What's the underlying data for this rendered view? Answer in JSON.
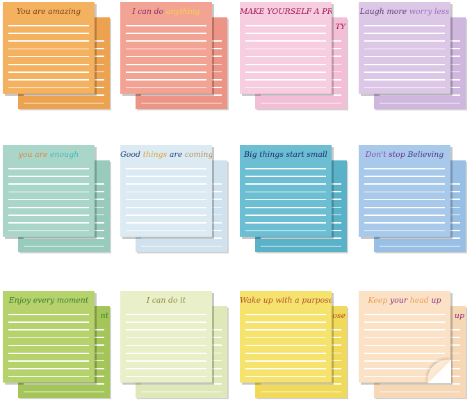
{
  "notes": [
    {
      "front": "#f4b260",
      "back": "#eda24f",
      "title": [
        {
          "t": "You are ",
          "c": "#7a3e12"
        },
        {
          "t": "amazing",
          "c": "#7a3e12"
        }
      ],
      "back_text": ""
    },
    {
      "front": "#f2a394",
      "back": "#ec9486",
      "title": [
        {
          "t": "I can do ",
          "c": "#8a2a6a"
        },
        {
          "t": "anything",
          "c": "#f7d24a"
        }
      ],
      "back_text": ""
    },
    {
      "front": "#f7cde0",
      "back": "#f3bfd6",
      "title": [
        {
          "t": "MAKE YOURSELF A PRIORITY",
          "c": "#a0124f"
        }
      ],
      "back_text": "TY"
    },
    {
      "front": "#dcc8e6",
      "back": "#cfb7dd",
      "title": [
        {
          "t": "Laugh more ",
          "c": "#5a3c76"
        },
        {
          "t": "worry less",
          "c": "#9a72c0"
        }
      ],
      "back_text": ""
    },
    {
      "front": "#a9d6c9",
      "back": "#98cbbc",
      "title": [
        {
          "t": "you are ",
          "c": "#e0803a"
        },
        {
          "t": "enough",
          "c": "#3fb8b8"
        }
      ],
      "back_text": ""
    },
    {
      "front": "#dcebf3",
      "back": "#cfe2ed",
      "title": [
        {
          "t": "Good ",
          "c": "#27407a"
        },
        {
          "t": "things ",
          "c": "#d9a23a"
        },
        {
          "t": "are ",
          "c": "#27407a"
        },
        {
          "t": "coming",
          "c": "#b58a54"
        }
      ],
      "back_text": ""
    },
    {
      "front": "#6cbed3",
      "back": "#5ab2c9",
      "title": [
        {
          "t": "Big things start small",
          "c": "#1d2f6b"
        }
      ],
      "back_text": ""
    },
    {
      "front": "#a9c9ea",
      "back": "#9abfe5",
      "title": [
        {
          "t": "Don't ",
          "c": "#8a4ab0"
        },
        {
          "t": "stop ",
          "c": "#6a2aa0"
        },
        {
          "t": "Believing",
          "c": "#4a3a90"
        }
      ],
      "back_text": ""
    },
    {
      "front": "#b6d26c",
      "back": "#a4c559",
      "title": [
        {
          "t": "Enjoy every moment",
          "c": "#3a7a2a"
        }
      ],
      "back_text": "nt"
    },
    {
      "front": "#e9f0c9",
      "back": "#dfe8b9",
      "title": [
        {
          "t": "I can do it",
          "c": "#8a8a3a"
        }
      ],
      "back_text": ""
    },
    {
      "front": "#f6e36e",
      "back": "#f1d95a",
      "title": [
        {
          "t": "Wake up with a purpose",
          "c": "#b0502a"
        }
      ],
      "back_text": "ose"
    },
    {
      "front": "#fbe2c6",
      "back": "#f6d8b6",
      "title": [
        {
          "t": "Keep ",
          "c": "#e89a52"
        },
        {
          "t": "your ",
          "c": "#8a2a7a"
        },
        {
          "t": "head ",
          "c": "#e89a52"
        },
        {
          "t": "up",
          "c": "#8a2a7a"
        }
      ],
      "back_text": "up"
    }
  ]
}
